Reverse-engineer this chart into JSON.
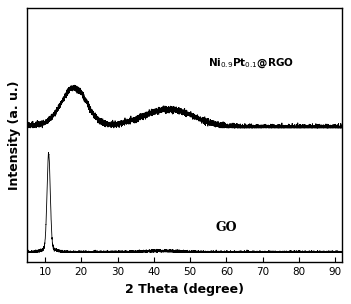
{
  "xlabel": "2 Theta (degree)",
  "ylabel": "Intensity (a. u.)",
  "xlim": [
    5,
    92
  ],
  "xticks": [
    10,
    20,
    30,
    40,
    50,
    60,
    70,
    80,
    90
  ],
  "label_go": "GO",
  "label_niptrgo": "Ni$_{0.9}$Pt$_{0.1}$@RGO",
  "line_color": "#000000",
  "background_color": "#ffffff",
  "axis_fontsize": 8,
  "tick_fontsize": 7.5
}
